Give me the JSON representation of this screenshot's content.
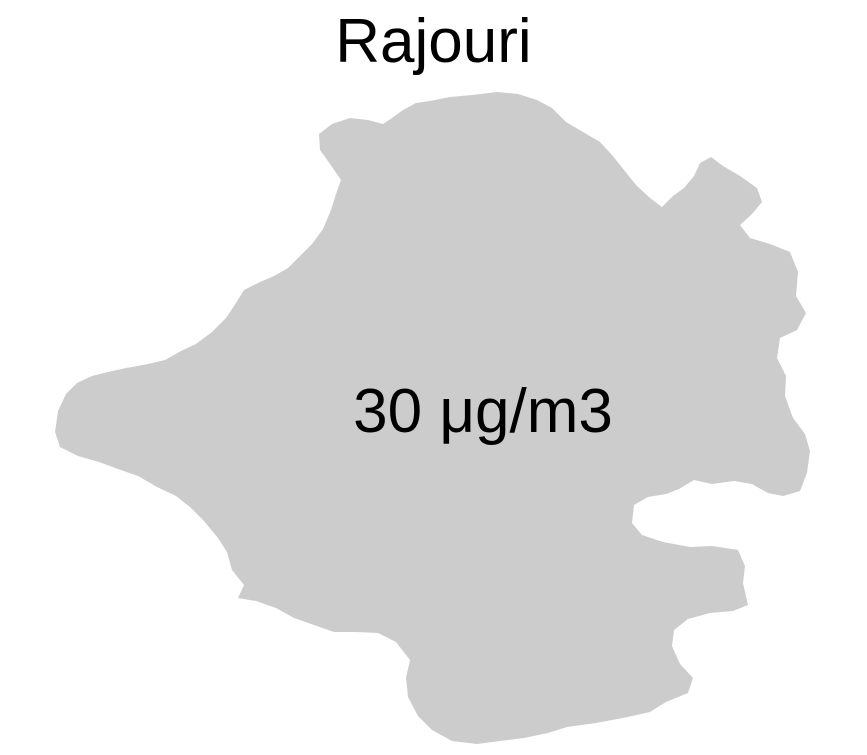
{
  "map": {
    "title": "Rajouri",
    "value_label": "30 μg/m3",
    "region_fill_color": "#cccccc",
    "background_color": "#ffffff",
    "text_color": "#000000"
  }
}
